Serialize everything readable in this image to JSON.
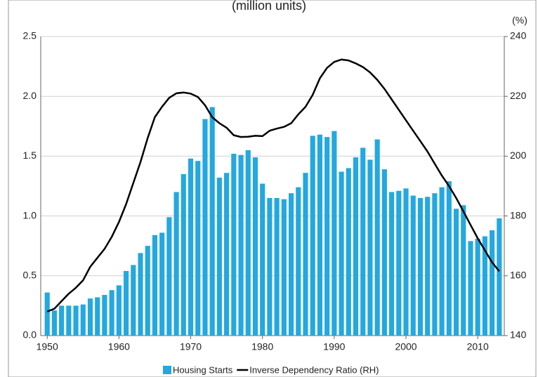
{
  "chart_data": {
    "type": "bar",
    "title": "(million units)",
    "y2_label": "(%)",
    "x": [
      1950,
      1951,
      1952,
      1953,
      1954,
      1955,
      1956,
      1957,
      1958,
      1959,
      1960,
      1961,
      1962,
      1963,
      1964,
      1965,
      1966,
      1967,
      1968,
      1969,
      1970,
      1971,
      1972,
      1973,
      1974,
      1975,
      1976,
      1977,
      1978,
      1979,
      1980,
      1981,
      1982,
      1983,
      1984,
      1985,
      1986,
      1987,
      1988,
      1989,
      1990,
      1991,
      1992,
      1993,
      1994,
      1995,
      1996,
      1997,
      1998,
      1999,
      2000,
      2001,
      2002,
      2003,
      2004,
      2005,
      2006,
      2007,
      2008,
      2009,
      2010,
      2011,
      2012,
      2013
    ],
    "series": [
      {
        "name": "Housing Starts",
        "type": "bar",
        "color": "#23a8e0",
        "values": [
          0.36,
          0.21,
          0.25,
          0.25,
          0.25,
          0.26,
          0.31,
          0.32,
          0.34,
          0.38,
          0.42,
          0.54,
          0.59,
          0.69,
          0.75,
          0.84,
          0.86,
          0.99,
          1.2,
          1.35,
          1.48,
          1.46,
          1.81,
          1.91,
          1.32,
          1.36,
          1.52,
          1.51,
          1.55,
          1.49,
          1.27,
          1.15,
          1.15,
          1.14,
          1.19,
          1.24,
          1.36,
          1.67,
          1.68,
          1.66,
          1.71,
          1.37,
          1.4,
          1.49,
          1.57,
          1.47,
          1.64,
          1.39,
          1.2,
          1.21,
          1.23,
          1.17,
          1.15,
          1.16,
          1.19,
          1.24,
          1.29,
          1.06,
          1.09,
          0.79,
          0.81,
          0.83,
          0.88,
          0.98
        ]
      },
      {
        "name": "Inverse Dependency Ratio (RH)",
        "type": "line",
        "axis": "y2",
        "color": "#000000",
        "values": [
          148,
          149,
          151.5,
          154,
          156,
          158.5,
          163,
          166,
          169,
          173,
          178,
          184,
          191,
          198,
          206,
          213,
          216.5,
          219.5,
          221,
          221.3,
          220.9,
          219.8,
          217,
          213,
          211,
          209.5,
          207,
          206.4,
          206.5,
          206.8,
          206.7,
          208.5,
          209.2,
          209.8,
          211,
          214,
          216.5,
          220.5,
          226,
          229.5,
          231.5,
          232.3,
          232,
          231,
          229.8,
          228,
          225.5,
          222.5,
          219,
          215.5,
          212,
          208.5,
          205,
          201.5,
          197.5,
          193.5,
          190,
          186,
          181.5,
          177,
          172.5,
          168.5,
          164.5,
          161.5
        ]
      }
    ],
    "xlim": [
      1949.1,
      2013.7
    ],
    "xticks": [
      1950,
      1960,
      1970,
      1980,
      1990,
      2000,
      2010
    ],
    "ylim": [
      0,
      2.5
    ],
    "yticks": [
      {
        "value": 0,
        "label": "0.0"
      },
      {
        "value": 0.5,
        "label": "0.5"
      },
      {
        "value": 1,
        "label": "1.0"
      },
      {
        "value": 1.5,
        "label": "1.5"
      },
      {
        "value": 2,
        "label": "2.0"
      },
      {
        "value": 2.5,
        "label": "2.5"
      }
    ],
    "y2lim": [
      140,
      240
    ],
    "y2ticks": [
      140,
      160,
      180,
      200,
      220,
      240
    ],
    "grid": true
  }
}
